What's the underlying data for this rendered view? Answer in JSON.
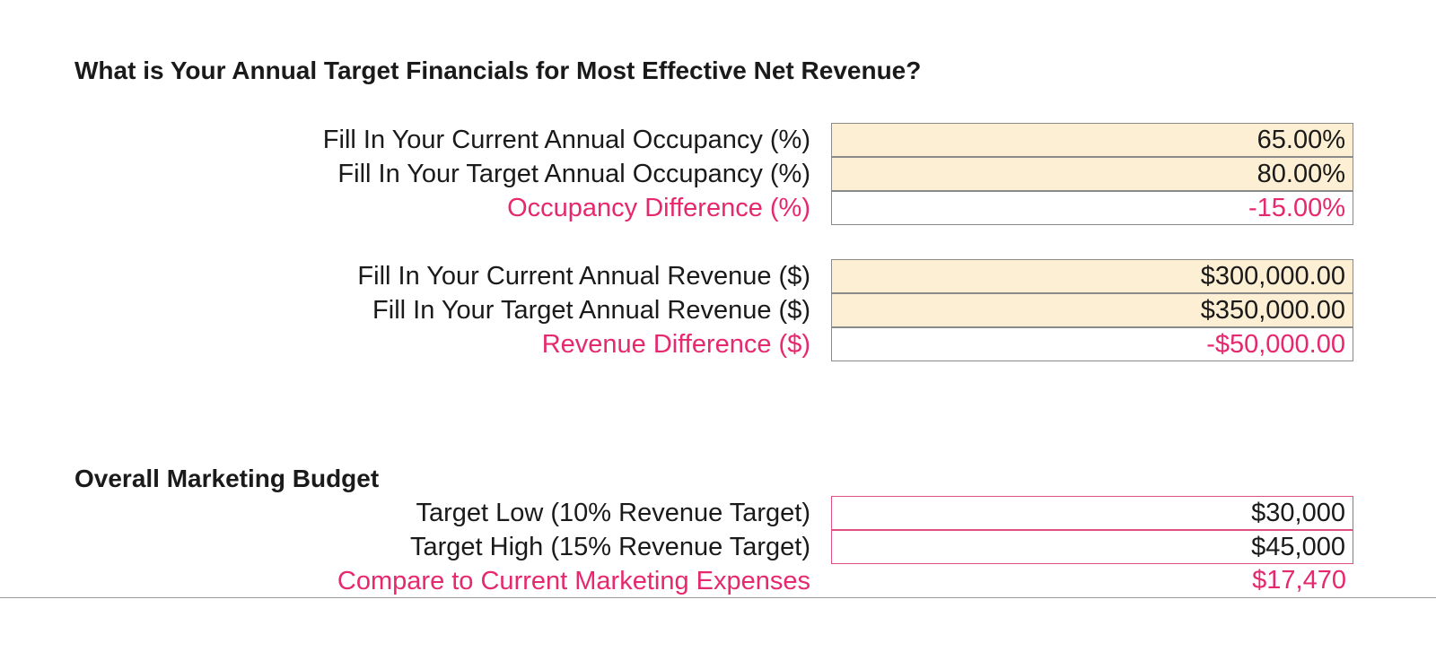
{
  "section1": {
    "title": "What is Your Annual Target Financials for Most Effective Net Revenue?",
    "occupancy": {
      "current_label": "Fill In Your Current Annual Occupancy (%)",
      "current_value": "65.00%",
      "target_label": "Fill In Your Target Annual Occupancy (%)",
      "target_value": "80.00%",
      "difference_label": "Occupancy Difference (%)",
      "difference_value": "-15.00%"
    },
    "revenue": {
      "current_label": "Fill In Your Current Annual Revenue ($)",
      "current_value": "$300,000.00",
      "target_label": "Fill In Your Target Annual Revenue ($)",
      "target_value": "$350,000.00",
      "difference_label": "Revenue Difference ($)",
      "difference_value": "-$50,000.00"
    }
  },
  "section2": {
    "title": "Overall Marketing Budget",
    "low_label": "Target Low (10% Revenue Target)",
    "low_value": "$30,000",
    "high_label": "Target High (15% Revenue Target)",
    "high_value": "$45,000",
    "compare_label": "Compare to Current Marketing Expenses",
    "compare_value": "$17,470"
  },
  "colors": {
    "input_fill": "#fdefd3",
    "accent_pink": "#e6286e",
    "cell_border": "#8a8a8a"
  }
}
